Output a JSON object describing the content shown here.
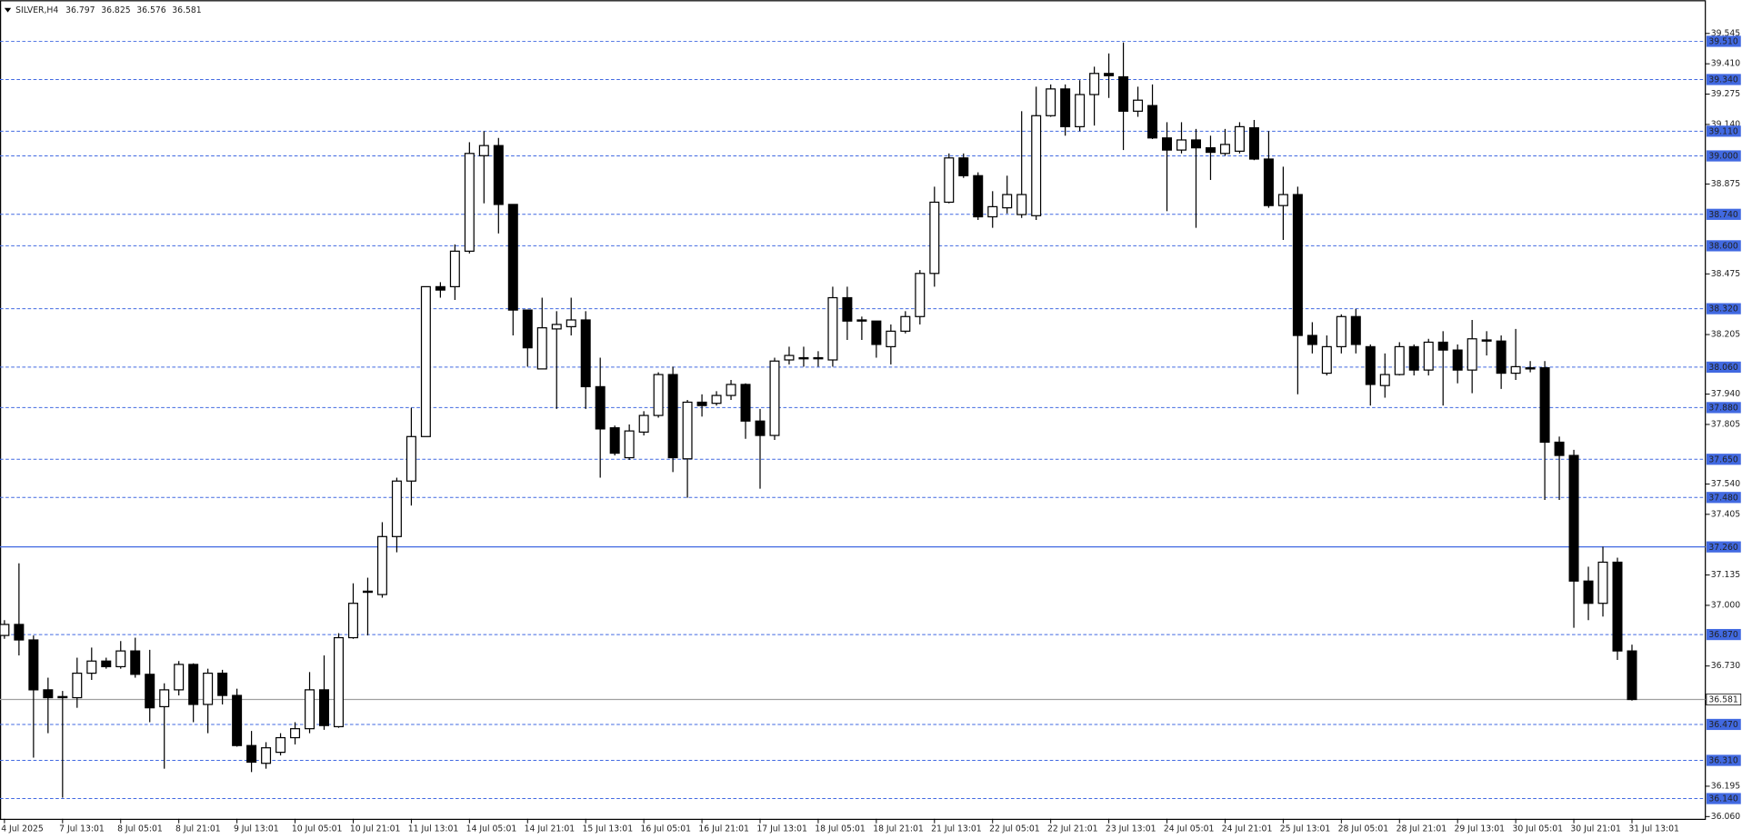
{
  "chart_data": {
    "type": "candlestick",
    "title": "SILVER,H4",
    "categories": [
      "4 Jul 2025",
      null,
      null,
      null,
      "7 Jul 13:01",
      null,
      null,
      null,
      "8 Jul 05:01",
      null,
      null,
      null,
      "8 Jul 21:01",
      null,
      null,
      null,
      "9 Jul 13:01",
      null,
      null,
      null,
      "10 Jul 05:01",
      null,
      null,
      null,
      "10 Jul 21:01",
      null,
      null,
      null,
      "11 Jul 13:01",
      null,
      null,
      null,
      "14 Jul 05:01",
      null,
      null,
      null,
      "14 Jul 21:01",
      null,
      null,
      null,
      "15 Jul 13:01",
      null,
      null,
      null,
      "16 Jul 05:01",
      null,
      null,
      null,
      "16 Jul 21:01",
      null,
      null,
      null,
      "17 Jul 13:01",
      null,
      null,
      null,
      "18 Jul 05:01",
      null,
      null,
      null,
      "18 Jul 21:01",
      null,
      null,
      null,
      "21 Jul 13:01",
      null,
      null,
      null,
      "22 Jul 05:01",
      null,
      null,
      null,
      "22 Jul 21:01",
      null,
      null,
      null,
      "23 Jul 13:01",
      null,
      null,
      null,
      "24 Jul 05:01",
      null,
      null,
      null,
      "24 Jul 21:01",
      null,
      null,
      null,
      "25 Jul 13:01",
      null,
      null,
      null,
      "28 Jul 05:01",
      null,
      null,
      null,
      "28 Jul 21:01",
      null,
      null,
      null,
      "29 Jul 13:01",
      null,
      null,
      null,
      "30 Jul 05:01",
      null,
      null,
      null,
      "30 Jul 21:01",
      null,
      null,
      null,
      "31 Jul 13:01"
    ],
    "open": [
      36.866,
      36.915,
      36.846,
      36.624,
      36.594,
      36.589,
      36.698,
      36.752,
      36.727,
      36.797,
      36.693,
      36.549,
      36.624,
      36.737,
      36.559,
      36.698,
      36.599,
      36.376,
      36.297,
      36.346,
      36.411,
      36.451,
      36.624,
      36.46,
      36.856,
      37.063,
      37.048,
      37.306,
      37.553,
      37.751,
      38.418,
      38.418,
      38.576,
      39.001,
      39.046,
      38.784,
      38.314,
      38.052,
      38.23,
      38.24,
      38.27,
      37.973,
      37.79,
      37.657,
      37.771,
      37.845,
      38.027,
      37.652,
      37.904,
      37.899,
      37.934,
      37.983,
      37.82,
      37.756,
      38.092,
      38.102,
      38.102,
      38.092,
      38.369,
      38.27,
      38.265,
      38.151,
      38.22,
      38.285,
      38.477,
      38.794,
      38.991,
      38.912,
      38.729,
      38.769,
      38.739,
      38.734,
      39.179,
      39.298,
      39.13,
      39.273,
      39.367,
      39.352,
      39.199,
      39.224,
      39.08,
      39.026,
      39.071,
      39.036,
      39.011,
      39.021,
      39.125,
      38.986,
      38.779,
      38.828,
      38.201,
      38.033,
      38.151,
      38.285,
      38.151,
      37.978,
      38.027,
      38.151,
      38.047,
      38.171,
      38.136,
      38.047,
      38.176,
      38.176,
      38.033,
      38.057,
      38.057,
      37.726,
      37.667,
      37.108,
      37.009,
      37.192,
      36.797
    ],
    "high": [
      36.934,
      37.187,
      36.866,
      36.678,
      36.619,
      36.767,
      36.812,
      36.767,
      36.841,
      36.856,
      36.802,
      36.653,
      36.752,
      36.742,
      36.718,
      36.713,
      36.629,
      36.441,
      36.391,
      36.431,
      36.48,
      36.703,
      36.777,
      36.876,
      37.098,
      37.123,
      37.37,
      37.568,
      37.879,
      38.418,
      38.438,
      38.606,
      39.061,
      39.11,
      39.08,
      38.784,
      38.314,
      38.369,
      38.309,
      38.369,
      38.309,
      38.102,
      37.8,
      37.805,
      37.864,
      38.037,
      38.062,
      37.914,
      37.939,
      37.953,
      38.003,
      37.988,
      37.874,
      38.102,
      38.151,
      38.151,
      38.131,
      38.418,
      38.418,
      38.285,
      38.265,
      38.25,
      38.309,
      38.492,
      38.863,
      39.011,
      39.011,
      38.927,
      38.843,
      38.912,
      39.199,
      39.308,
      39.318,
      39.318,
      39.337,
      39.397,
      39.456,
      39.505,
      39.308,
      39.318,
      39.15,
      39.15,
      39.12,
      39.09,
      39.12,
      39.15,
      39.16,
      39.11,
      38.952,
      38.863,
      38.26,
      38.201,
      38.295,
      38.319,
      38.161,
      38.121,
      38.171,
      38.161,
      38.186,
      38.22,
      38.161,
      38.27,
      38.22,
      38.201,
      38.23,
      38.087,
      38.087,
      37.751,
      37.692,
      37.172,
      37.261,
      37.212,
      36.825
    ],
    "low": [
      36.851,
      36.777,
      36.322,
      36.431,
      36.144,
      36.544,
      36.668,
      36.718,
      36.718,
      36.678,
      36.48,
      36.273,
      36.599,
      36.48,
      36.431,
      36.559,
      36.371,
      36.258,
      36.273,
      36.332,
      36.381,
      36.431,
      36.446,
      36.455,
      36.851,
      36.866,
      37.034,
      37.236,
      37.444,
      37.751,
      38.369,
      38.359,
      38.566,
      38.789,
      38.655,
      38.201,
      38.062,
      38.052,
      37.874,
      38.201,
      37.874,
      37.568,
      37.667,
      37.647,
      37.756,
      37.835,
      37.593,
      37.479,
      37.84,
      37.889,
      37.914,
      37.741,
      37.519,
      37.736,
      38.072,
      38.062,
      38.062,
      38.062,
      38.181,
      38.181,
      38.102,
      38.072,
      38.21,
      38.25,
      38.418,
      38.789,
      38.902,
      38.715,
      38.68,
      38.744,
      38.724,
      38.715,
      39.174,
      39.09,
      39.11,
      39.135,
      39.258,
      39.026,
      39.174,
      39.075,
      38.754,
      39.011,
      38.68,
      38.893,
      39.001,
      39.011,
      38.981,
      38.769,
      38.626,
      37.939,
      38.121,
      38.023,
      38.121,
      38.121,
      37.889,
      37.924,
      38.023,
      38.023,
      38.023,
      37.889,
      37.988,
      37.944,
      38.112,
      37.963,
      38.003,
      38.037,
      37.469,
      37.469,
      36.9,
      36.934,
      36.95,
      36.757,
      36.576
    ],
    "close": [
      36.915,
      36.846,
      36.624,
      36.589,
      36.589,
      36.698,
      36.752,
      36.727,
      36.797,
      36.693,
      36.544,
      36.624,
      36.737,
      36.559,
      36.698,
      36.599,
      36.376,
      36.302,
      36.366,
      36.411,
      36.451,
      36.624,
      36.465,
      36.856,
      37.009,
      37.058,
      37.306,
      37.553,
      37.751,
      38.418,
      38.403,
      38.576,
      39.011,
      39.046,
      38.784,
      38.314,
      38.146,
      38.235,
      38.25,
      38.27,
      37.973,
      37.785,
      37.677,
      37.776,
      37.845,
      38.027,
      37.657,
      37.904,
      37.889,
      37.934,
      37.983,
      37.82,
      37.756,
      38.087,
      38.112,
      38.097,
      38.102,
      38.369,
      38.265,
      38.265,
      38.161,
      38.22,
      38.285,
      38.477,
      38.794,
      38.991,
      38.912,
      38.729,
      38.774,
      38.828,
      38.828,
      39.179,
      39.298,
      39.13,
      39.273,
      39.367,
      39.357,
      39.199,
      39.248,
      39.08,
      39.026,
      39.071,
      39.036,
      39.016,
      39.051,
      39.13,
      38.986,
      38.779,
      38.828,
      38.201,
      38.161,
      38.151,
      38.285,
      38.161,
      37.983,
      38.027,
      38.151,
      38.047,
      38.171,
      38.136,
      38.047,
      38.186,
      38.181,
      38.033,
      38.062,
      38.052,
      37.726,
      37.667,
      37.108,
      37.009,
      37.192,
      36.797,
      36.581
    ],
    "up_color": "#ffffff",
    "down_color": "#000000",
    "level_color": "#4169e1",
    "ylim": [
      36.05,
      39.688
    ],
    "yticks": [
      39.545,
      {
        "value": 39.41,
        "label": "39.410"
      },
      39.275,
      {
        "value": 39.14,
        "label": "39.140"
      },
      38.875,
      38.475,
      38.205,
      {
        "value": 37.94,
        "label": "37.940"
      },
      37.805,
      {
        "value": 37.54,
        "label": "37.540"
      },
      37.405,
      37.135,
      {
        "value": 37,
        "label": "37.000"
      },
      {
        "value": 36.73,
        "label": "36.730"
      },
      36.195,
      {
        "value": 36.06,
        "label": "36.060"
      }
    ],
    "levels": [
      {
        "value": 39.51,
        "label": "39.510",
        "style": "dashed"
      },
      {
        "value": 39.34,
        "label": "39.340",
        "style": "dashed"
      },
      {
        "value": 39.11,
        "label": "39.110",
        "style": "dashed"
      },
      {
        "value": 39,
        "label": "39.000",
        "style": "dashed"
      },
      {
        "value": 38.74,
        "label": "38.740",
        "style": "dashed"
      },
      {
        "value": 38.6,
        "label": "38.600",
        "style": "dashed"
      },
      {
        "value": 38.32,
        "label": "38.320",
        "style": "dashed"
      },
      {
        "value": 38.06,
        "label": "38.060",
        "style": "dashed"
      },
      {
        "value": 37.88,
        "label": "37.880",
        "style": "dashed"
      },
      {
        "value": 37.65,
        "label": "37.650",
        "style": "dashed"
      },
      {
        "value": 37.48,
        "label": "37.480",
        "style": "dashed"
      },
      {
        "value": 37.26,
        "label": "37.260",
        "style": "solid"
      },
      {
        "value": 36.87,
        "label": "36.870",
        "style": "dashed"
      },
      {
        "value": 36.47,
        "label": "36.470",
        "style": "dashed"
      },
      {
        "value": 36.31,
        "label": "36.310",
        "style": "dashed"
      },
      {
        "value": 36.14,
        "label": "36.140",
        "style": "dashed"
      }
    ]
  }
}
